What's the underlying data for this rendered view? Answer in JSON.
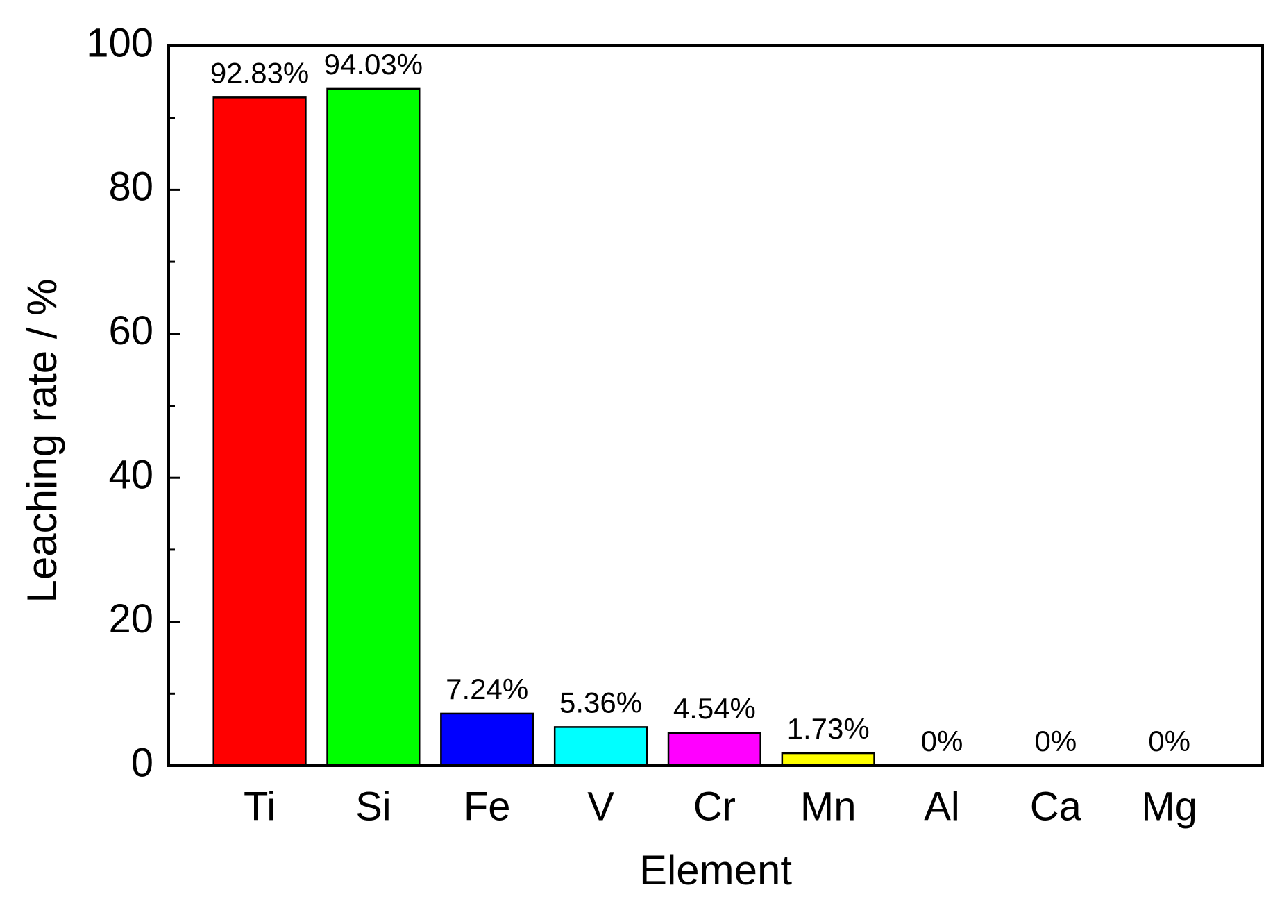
{
  "chart_data": {
    "type": "bar",
    "x_label": "Element",
    "y_label": "Leaching rate / %",
    "categories": [
      "Ti",
      "Si",
      "Fe",
      "V",
      "Cr",
      "Mn",
      "Al",
      "Ca",
      "Mg"
    ],
    "values": [
      92.83,
      94.03,
      7.24,
      5.36,
      4.54,
      1.73,
      0,
      0,
      0
    ],
    "value_labels": [
      "92.83%",
      "94.03%",
      "7.24%",
      "5.36%",
      "4.54%",
      "1.73%",
      "0%",
      "0%",
      "0%"
    ],
    "colors": [
      "#ff0000",
      "#00ff00",
      "#0000ff",
      "#00ffff",
      "#ff00ff",
      "#ffff00",
      "#ff8000",
      "#8000ff",
      "#808080"
    ],
    "ylim": [
      0,
      100
    ],
    "yticks": [
      0,
      20,
      40,
      60,
      80,
      100
    ],
    "y_minor_ticks": [
      10,
      30,
      50,
      70,
      90
    ]
  }
}
